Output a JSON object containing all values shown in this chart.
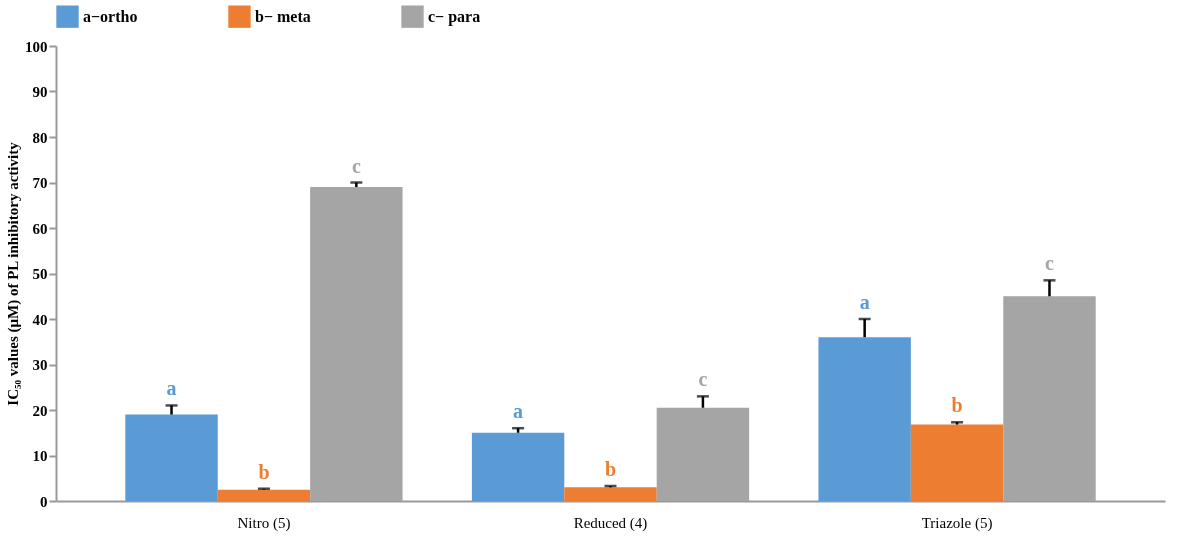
{
  "chart_data": {
    "type": "bar",
    "ylabel": "IC₅₀ values (μM) of PL inhibitory activity",
    "categories": [
      "Nitro (5)",
      "Reduced (4)",
      "Triazole (5)"
    ],
    "series": [
      {
        "name": "a−ortho",
        "color": "#5b9bd5",
        "values": [
          19,
          15,
          36
        ],
        "errors": [
          [
            19,
            21
          ],
          [
            15,
            16
          ],
          [
            36,
            40
          ]
        ],
        "value_labels": [
          "a",
          "a",
          "a"
        ]
      },
      {
        "name": "b− meta",
        "color": "#ed7d31",
        "values": [
          2.5,
          3,
          16.8
        ],
        "errors": [
          [
            2.5,
            2.7
          ],
          [
            3,
            3.3
          ],
          [
            16.8,
            17.3
          ]
        ],
        "value_labels": [
          "b",
          "b",
          "b"
        ]
      },
      {
        "name": "c− para",
        "color": "#a5a5a5",
        "values": [
          69,
          20.5,
          45
        ],
        "errors": [
          [
            69,
            70
          ],
          [
            20.5,
            23
          ],
          [
            45,
            48.5
          ]
        ],
        "value_labels": [
          "c",
          "c",
          "c"
        ]
      }
    ],
    "ylim": [
      0,
      100
    ],
    "yticks": [
      0,
      10,
      20,
      30,
      40,
      50,
      60,
      70,
      80,
      90,
      100
    ],
    "grid": false,
    "legend": "top"
  }
}
